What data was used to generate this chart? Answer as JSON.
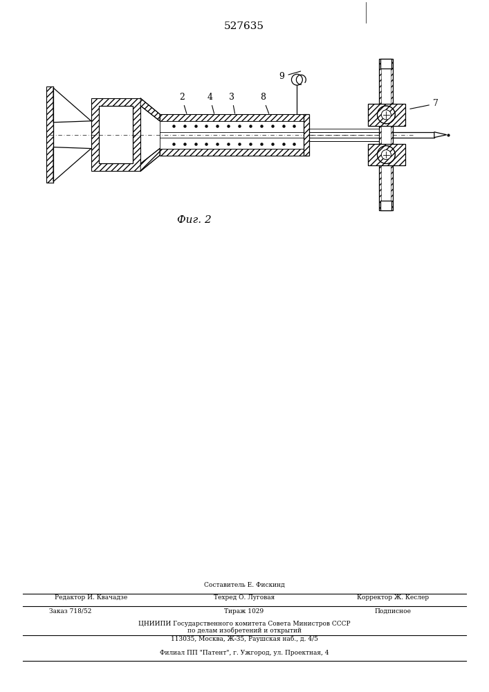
{
  "title": "527635",
  "fig_label": "Фиг. 2",
  "background_color": "#ffffff",
  "line_color": "#000000",
  "footer_lines": [
    "Составитель Е. Фискинд",
    "Редактор И. Квачадзе",
    "Техред О. Луговая",
    "Корректор Ж. Кеслер",
    "Заказ 718/52",
    "Тираж 1029",
    "Подписное",
    "ЦНИИПИ Государственного комитета Совета Министров СССР",
    "по делам изобретений и открытий",
    "113035, Москва, Ж-35, Раушская наб., д. 4/5",
    "Филиал ППП \"Патент\", г. Ужгород, ул. Проектная, 4"
  ]
}
